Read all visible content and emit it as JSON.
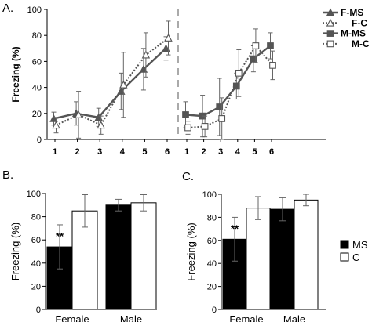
{
  "panels": {
    "A": {
      "label": "A."
    },
    "B": {
      "label": "B."
    },
    "C": {
      "label": "C."
    }
  },
  "chart_data": [
    {
      "id": "A",
      "type": "line",
      "ylabel": "Freezing (%)",
      "xlabel": "",
      "ylim": [
        0,
        100
      ],
      "yticks": [
        "0",
        "20",
        "40",
        "60",
        "80",
        "100"
      ],
      "x_female": [
        "1",
        "2",
        "3",
        "4",
        "5",
        "6"
      ],
      "x_male": [
        "1",
        "2",
        "3",
        "4",
        "5",
        "6"
      ],
      "legend_position": "top-right",
      "series": [
        {
          "name": "F-MS",
          "group": "female",
          "line": "solid",
          "marker": "triangle-filled",
          "values": [
            16,
            20,
            17,
            37,
            54,
            70
          ],
          "errors": [
            5,
            9,
            7,
            14,
            16,
            9
          ]
        },
        {
          "name": "F-C",
          "group": "female",
          "line": "dotted",
          "marker": "triangle-open",
          "values": [
            11,
            19,
            11,
            42,
            65,
            78
          ],
          "errors": [
            6,
            18,
            7,
            25,
            17,
            13
          ]
        },
        {
          "name": "M-MS",
          "group": "male",
          "line": "solid",
          "marker": "square-filled",
          "values": [
            19,
            18,
            25,
            41,
            62,
            72
          ],
          "errors": [
            10,
            16,
            22,
            10,
            10,
            10
          ]
        },
        {
          "name": "M-C",
          "group": "male",
          "line": "dotted",
          "marker": "square-open",
          "values": [
            9,
            10,
            16,
            51,
            72,
            57
          ],
          "errors": [
            5,
            8,
            16,
            18,
            13,
            11
          ]
        }
      ]
    },
    {
      "id": "B",
      "type": "bar",
      "ylabel": "Freezing (%)",
      "categories": [
        "Female",
        "Male"
      ],
      "ylim": [
        0,
        100
      ],
      "yticks": [
        "0",
        "20",
        "40",
        "60",
        "80",
        "100"
      ],
      "annotation": "**",
      "series": [
        {
          "name": "MS",
          "color": "#000000",
          "values": [
            54,
            90
          ],
          "errors": [
            19,
            5
          ]
        },
        {
          "name": "C",
          "color": "#ffffff",
          "values": [
            85,
            92
          ],
          "errors": [
            14,
            7
          ]
        }
      ]
    },
    {
      "id": "C",
      "type": "bar",
      "ylabel": "Freezing (%)",
      "categories": [
        "Female",
        "Male"
      ],
      "ylim": [
        0,
        100
      ],
      "yticks": [
        "0",
        "20",
        "40",
        "60",
        "80",
        "100"
      ],
      "annotation": "**",
      "legend_position": "right",
      "series": [
        {
          "name": "MS",
          "color": "#000000",
          "values": [
            61,
            87
          ],
          "errors": [
            19,
            10
          ]
        },
        {
          "name": "C",
          "color": "#ffffff",
          "values": [
            88,
            95
          ],
          "errors": [
            10,
            5
          ]
        }
      ]
    }
  ]
}
